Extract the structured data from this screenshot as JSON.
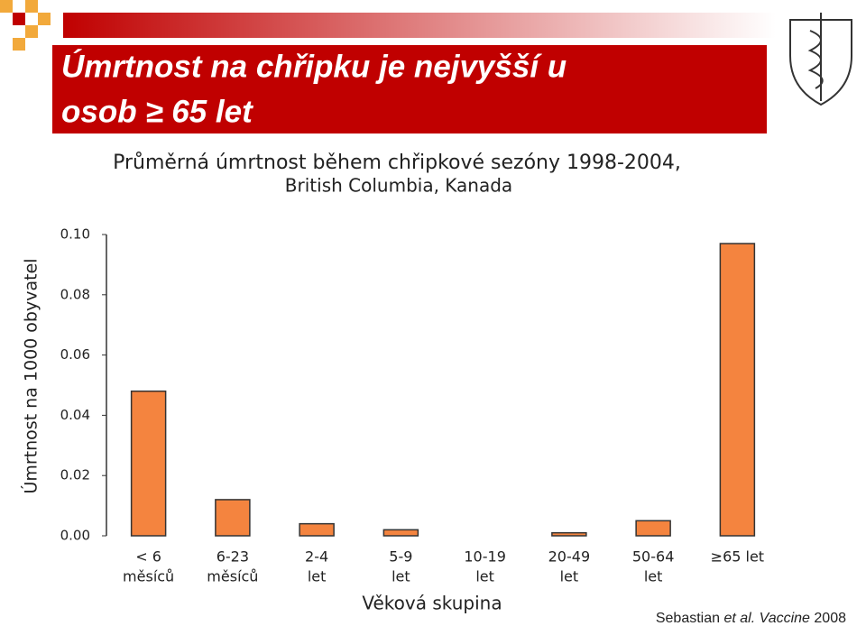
{
  "chart_data": {
    "type": "bar",
    "title": [
      "Úmrtnost na chřipku je nejvyšší u",
      "osob ≥ 65 let"
    ],
    "subtitle": [
      "Průměrná úmrtnost během chřipkové sezóny 1998-2004,",
      "British Columbia, Kanada"
    ],
    "y_label": "Úmrtnost na 1000 obyvatel",
    "x_label": "Věková skupina",
    "source": [
      "Sebastian",
      "et al. Vaccine",
      "2008"
    ],
    "categories": [
      [
        "< 6",
        "měsíců"
      ],
      [
        "6-23",
        "měsíců"
      ],
      [
        "2-4",
        "let"
      ],
      [
        "5-9",
        "let"
      ],
      [
        "10-19",
        "let"
      ],
      [
        "20-49",
        "let"
      ],
      [
        "50-64",
        "let"
      ],
      [
        "≥65 let"
      ]
    ],
    "values": [
      0.048,
      0.012,
      0.004,
      0.002,
      0,
      0.001,
      0.005,
      0.097
    ],
    "color": "#f4843f",
    "ylim": [
      0,
      0.1
    ],
    "yticks": [
      {
        "value": 0,
        "label": "0.00"
      },
      {
        "value": 0.02,
        "label": "0.02"
      },
      {
        "value": 0.04,
        "label": "0.04"
      },
      {
        "value": 0.06,
        "label": "0.06"
      },
      {
        "value": 0.08,
        "label": "0.08"
      },
      {
        "value": 0.1,
        "label": "0.10"
      }
    ]
  }
}
